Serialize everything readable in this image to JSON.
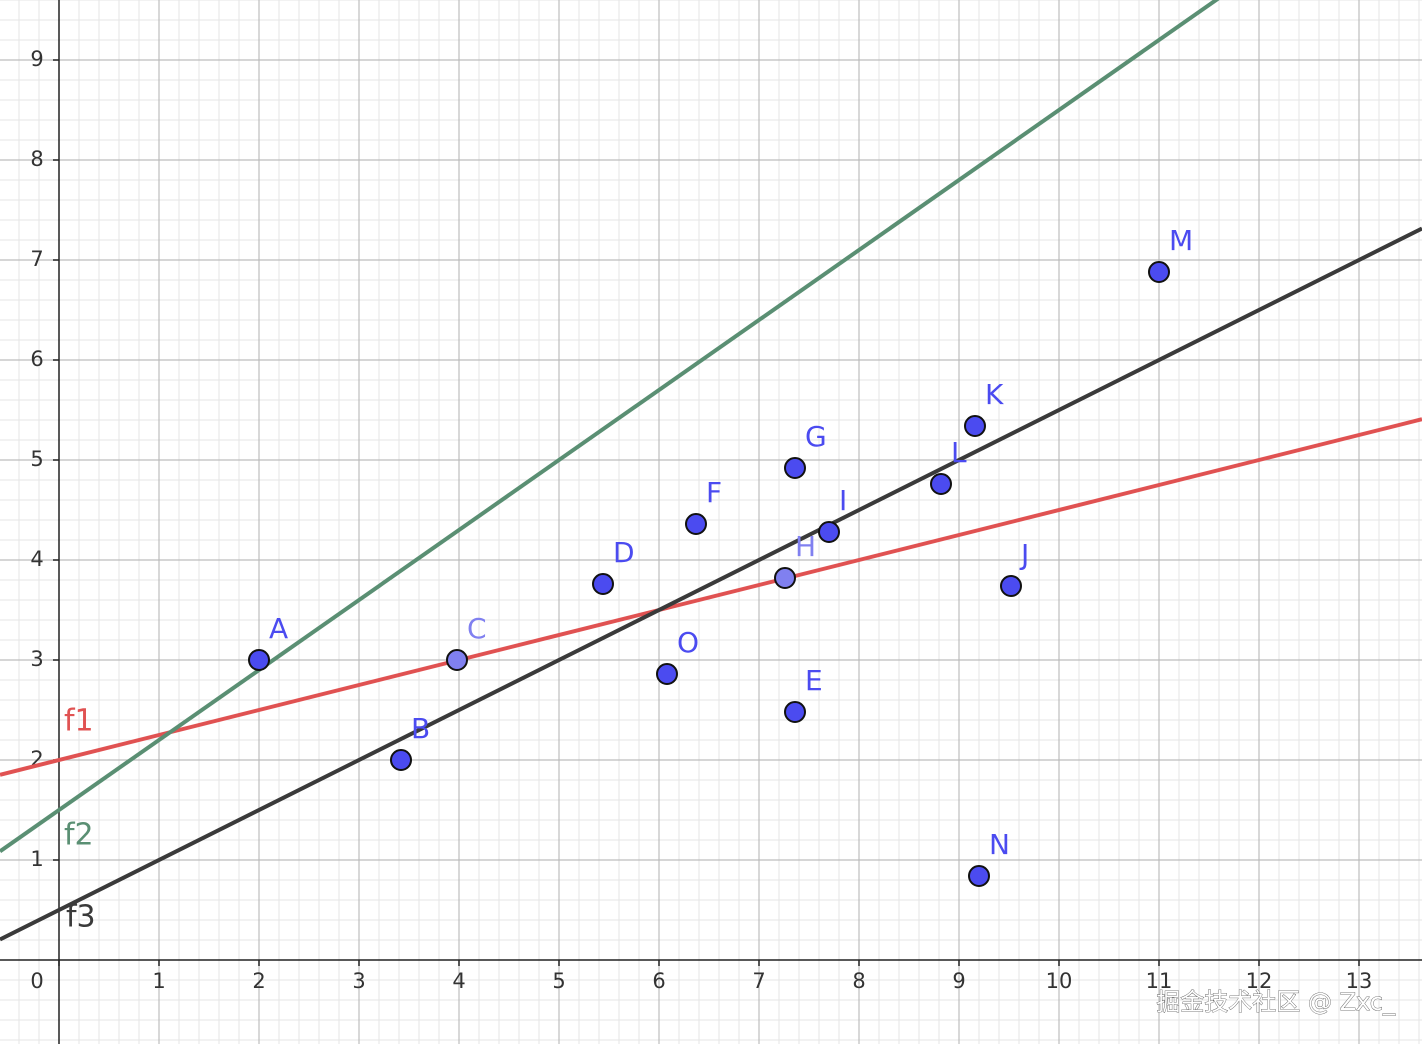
{
  "chart_data": {
    "type": "scatter",
    "xlim": [
      -0.59,
      13.63
    ],
    "ylim": [
      -0.84,
      9.6
    ],
    "xticks": [
      0,
      1,
      2,
      3,
      4,
      5,
      6,
      7,
      8,
      9,
      10,
      11,
      12,
      13
    ],
    "yticks": [
      1,
      2,
      3,
      4,
      5,
      6,
      7,
      8,
      9
    ],
    "grid": true,
    "minor_divisions": 5,
    "points": {
      "labels": [
        "A",
        "B",
        "C",
        "D",
        "E",
        "F",
        "G",
        "H",
        "I",
        "J",
        "K",
        "L",
        "M",
        "N",
        "O"
      ],
      "x": [
        2,
        3.42,
        3.98,
        5.44,
        7.36,
        6.37,
        7.36,
        7.26,
        7.7,
        9.52,
        9.16,
        8.82,
        11.0,
        9.2,
        6.08
      ],
      "y": [
        3,
        2.0,
        3.0,
        3.76,
        2.48,
        4.36,
        4.92,
        3.82,
        4.28,
        3.74,
        5.34,
        4.76,
        6.88,
        0.84,
        2.86
      ],
      "colors": [
        "#4b4bf0",
        "#4b4bf0",
        "#8080f0",
        "#4b4bf0",
        "#4b4bf0",
        "#4b4bf0",
        "#4b4bf0",
        "#8080f0",
        "#4b4bf0",
        "#4b4bf0",
        "#4b4bf0",
        "#4b4bf0",
        "#4b4bf0",
        "#4b4bf0",
        "#4b4bf0"
      ]
    },
    "lines": [
      {
        "name": "f1",
        "color": "#e05252",
        "slope": 0.25,
        "intercept": 2
      },
      {
        "name": "f2",
        "color": "#5a8f73",
        "slope": 0.7,
        "intercept": 1.5
      },
      {
        "name": "f3",
        "color": "#3a3a3a",
        "slope": 0.5,
        "intercept": 0.5
      }
    ],
    "watermark": "掘金技术社区 @ Zxc_"
  }
}
